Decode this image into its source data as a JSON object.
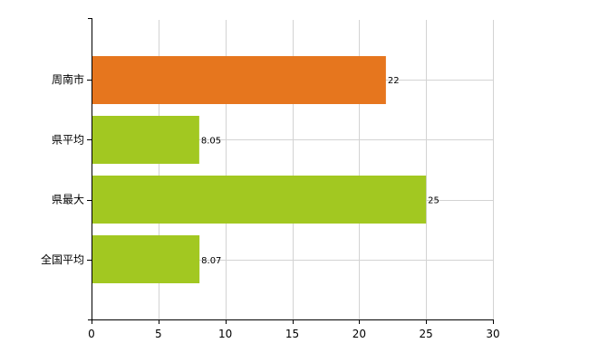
{
  "chart_data": {
    "type": "bar",
    "orientation": "horizontal",
    "categories": [
      "周南市",
      "県平均",
      "県最大",
      "全国平均"
    ],
    "values": [
      22,
      8.05,
      25,
      8.07
    ],
    "value_labels": [
      "22",
      "8.05",
      "25",
      "8.07"
    ],
    "bar_colors": [
      "#e6761e",
      "#a2c821",
      "#a2c821",
      "#a2c821"
    ],
    "xlim": [
      0,
      30
    ],
    "x_ticks": [
      "0",
      "5",
      "10",
      "15",
      "20",
      "25",
      "30"
    ],
    "grid": true,
    "title": "",
    "xlabel": "",
    "ylabel": ""
  }
}
